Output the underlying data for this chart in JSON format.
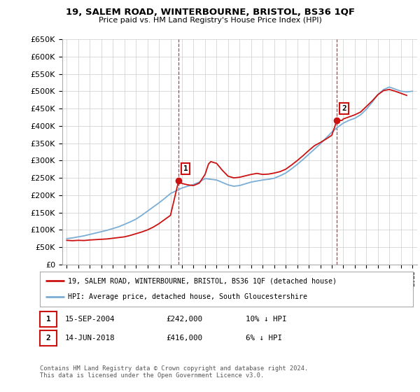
{
  "title": "19, SALEM ROAD, WINTERBOURNE, BRISTOL, BS36 1QF",
  "subtitle": "Price paid vs. HM Land Registry's House Price Index (HPI)",
  "hpi_x": [
    1995,
    1995.5,
    1996,
    1996.5,
    1997,
    1997.5,
    1998,
    1998.5,
    1999,
    1999.5,
    2000,
    2000.5,
    2001,
    2001.5,
    2002,
    2002.5,
    2003,
    2003.5,
    2004,
    2004.5,
    2005,
    2005.5,
    2006,
    2006.5,
    2007,
    2007.5,
    2008,
    2008.5,
    2009,
    2009.5,
    2010,
    2010.5,
    2011,
    2011.5,
    2012,
    2012.5,
    2013,
    2013.5,
    2014,
    2014.5,
    2015,
    2015.5,
    2016,
    2016.5,
    2017,
    2017.5,
    2018,
    2018.5,
    2019,
    2019.5,
    2020,
    2020.5,
    2021,
    2021.5,
    2022,
    2022.5,
    2023,
    2023.5,
    2024,
    2024.5,
    2025
  ],
  "hpi_y": [
    75000,
    77000,
    80000,
    83000,
    87000,
    91000,
    95000,
    99000,
    104000,
    109000,
    116000,
    123000,
    131000,
    142000,
    154000,
    166000,
    178000,
    191000,
    205000,
    213000,
    221000,
    226000,
    231000,
    238000,
    248000,
    246000,
    244000,
    237000,
    230000,
    226000,
    228000,
    233000,
    238000,
    241000,
    244000,
    246000,
    249000,
    256000,
    264000,
    276000,
    289000,
    303000,
    318000,
    333000,
    348000,
    365000,
    382000,
    396000,
    408000,
    416000,
    422000,
    432000,
    448000,
    468000,
    490000,
    505000,
    512000,
    506000,
    500000,
    498000,
    500000
  ],
  "red_x": [
    1995.0,
    1995.5,
    1996.0,
    1996.5,
    1997.0,
    1997.5,
    1998.0,
    1998.5,
    1999.0,
    1999.5,
    2000.0,
    2000.5,
    2001.0,
    2001.5,
    2002.0,
    2002.5,
    2003.0,
    2003.5,
    2004.0,
    2004.71,
    2005.0,
    2005.5,
    2006.0,
    2006.5,
    2007.0,
    2007.3,
    2007.5,
    2008.0,
    2008.5,
    2009.0,
    2009.5,
    2010.0,
    2010.5,
    2011.0,
    2011.5,
    2012.0,
    2012.5,
    2013.0,
    2013.5,
    2014.0,
    2014.5,
    2015.0,
    2015.5,
    2016.0,
    2016.5,
    2017.0,
    2017.5,
    2018.0,
    2018.45,
    2018.9,
    2019.0,
    2019.5,
    2020.0,
    2020.5,
    2021.0,
    2021.5,
    2022.0,
    2022.5,
    2023.0,
    2023.5,
    2024.0,
    2024.5
  ],
  "red_y": [
    70000,
    69000,
    70000,
    69500,
    71000,
    72000,
    73000,
    74000,
    76000,
    78000,
    80000,
    84000,
    89000,
    94000,
    100000,
    108000,
    118000,
    130000,
    142000,
    242000,
    234000,
    230000,
    228000,
    235000,
    260000,
    290000,
    297000,
    292000,
    272000,
    255000,
    250000,
    252000,
    256000,
    260000,
    263000,
    260000,
    261000,
    264000,
    268000,
    275000,
    287000,
    300000,
    314000,
    329000,
    343000,
    352000,
    362000,
    373000,
    416000,
    416000,
    420000,
    426000,
    432000,
    440000,
    456000,
    472000,
    490000,
    502000,
    505000,
    500000,
    494000,
    488000
  ],
  "sale1_x": 2004.71,
  "sale1_y": 242000,
  "sale2_x": 2018.45,
  "sale2_y": 416000,
  "dashed_x1": 2004.71,
  "dashed_x2": 2018.45,
  "ylim": [
    0,
    650000
  ],
  "xlim": [
    1994.6,
    2025.4
  ],
  "yticks": [
    0,
    50000,
    100000,
    150000,
    200000,
    250000,
    300000,
    350000,
    400000,
    450000,
    500000,
    550000,
    600000,
    650000
  ],
  "xtick_years": [
    1995,
    1996,
    1997,
    1998,
    1999,
    2000,
    2001,
    2002,
    2003,
    2004,
    2005,
    2006,
    2007,
    2008,
    2009,
    2010,
    2011,
    2012,
    2013,
    2014,
    2015,
    2016,
    2017,
    2018,
    2019,
    2020,
    2021,
    2022,
    2023,
    2024,
    2025
  ],
  "legend_line1": "19, SALEM ROAD, WINTERBOURNE, BRISTOL, BS36 1QF (detached house)",
  "legend_line2": "HPI: Average price, detached house, South Gloucestershire",
  "table_row1": [
    "1",
    "15-SEP-2004",
    "£242,000",
    "10% ↓ HPI"
  ],
  "table_row2": [
    "2",
    "14-JUN-2018",
    "£416,000",
    "6% ↓ HPI"
  ],
  "footnote": "Contains HM Land Registry data © Crown copyright and database right 2024.\nThis data is licensed under the Open Government Licence v3.0.",
  "hpi_color": "#7aaed6",
  "red_color": "#cc1111",
  "bg_color": "#ffffff",
  "grid_color": "#cccccc",
  "legend_border_color": "#aaaaaa",
  "sale_box_color": "#cc1111"
}
